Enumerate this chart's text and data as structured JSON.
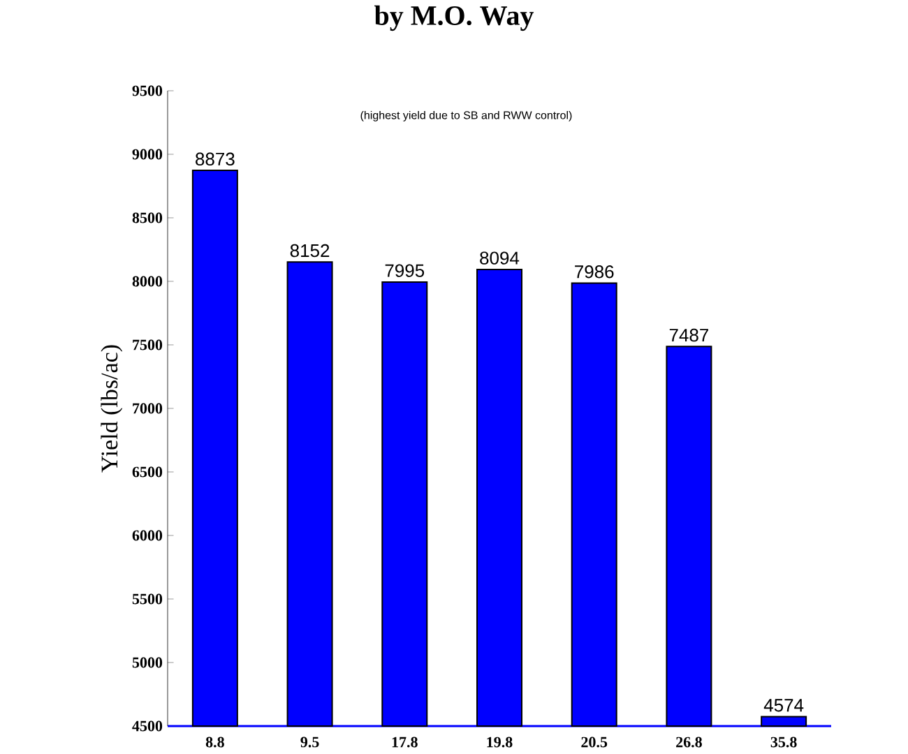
{
  "chart_data": {
    "type": "bar",
    "title": "by M.O. Way",
    "ylabel": "Yield (lbs/ac)",
    "annotations": [
      "(highest yield due to SB and RWW control)"
    ],
    "categories": [
      "8.8",
      "9.5",
      "17.8",
      "19.8",
      "20.5",
      "26.8",
      "35.8"
    ],
    "values": [
      8873,
      8152,
      7995,
      8094,
      7986,
      7487,
      4574
    ],
    "color": "#0000ff",
    "data_labels": true,
    "ylim": [
      4500,
      9500
    ],
    "yticks": [
      4500,
      5000,
      5500,
      6000,
      6500,
      7000,
      7500,
      8000,
      8500,
      9000,
      9500
    ]
  }
}
